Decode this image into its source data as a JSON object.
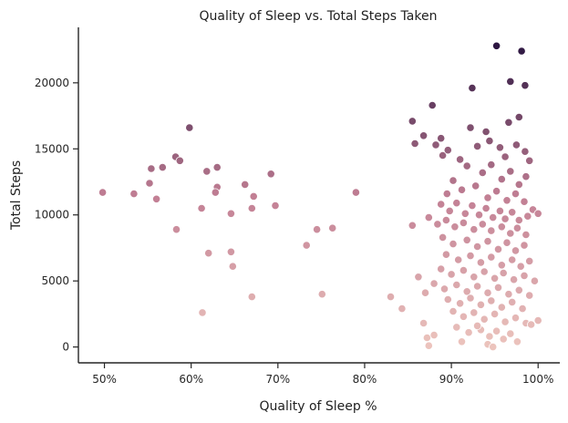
{
  "chart_data": {
    "type": "scatter",
    "title": "Quality of Sleep vs. Total Steps Taken",
    "xlabel": "Quality of Sleep %",
    "ylabel": "Total Steps",
    "xlim": [
      0.47,
      1.025
    ],
    "ylim": [
      -1200,
      24200
    ],
    "xticks": [
      0.5,
      0.6,
      0.7,
      0.8,
      0.9,
      1.0
    ],
    "xtick_labels": [
      "50%",
      "60%",
      "70%",
      "80%",
      "90%",
      "100%"
    ],
    "yticks": [
      0,
      5000,
      10000,
      15000,
      20000
    ],
    "ytick_labels": [
      "0",
      "5000",
      "10000",
      "15000",
      "20000"
    ],
    "grid": false,
    "color_encoding": "hue by Total Steps (light pink = low, dark purple = high)",
    "colors": {
      "low": "#ecc4bd",
      "mid": "#c27f94",
      "high": "#2d1641"
    },
    "points": [
      {
        "x": 0.498,
        "y": 11700
      },
      {
        "x": 0.534,
        "y": 11600
      },
      {
        "x": 0.552,
        "y": 12400
      },
      {
        "x": 0.554,
        "y": 13500
      },
      {
        "x": 0.56,
        "y": 11200
      },
      {
        "x": 0.567,
        "y": 13600
      },
      {
        "x": 0.582,
        "y": 14400
      },
      {
        "x": 0.587,
        "y": 14100
      },
      {
        "x": 0.598,
        "y": 16600
      },
      {
        "x": 0.583,
        "y": 8900
      },
      {
        "x": 0.612,
        "y": 10500
      },
      {
        "x": 0.618,
        "y": 13300
      },
      {
        "x": 0.63,
        "y": 13600
      },
      {
        "x": 0.63,
        "y": 12100
      },
      {
        "x": 0.628,
        "y": 11700
      },
      {
        "x": 0.646,
        "y": 10100
      },
      {
        "x": 0.62,
        "y": 7100
      },
      {
        "x": 0.646,
        "y": 7200
      },
      {
        "x": 0.648,
        "y": 6100
      },
      {
        "x": 0.613,
        "y": 2600
      },
      {
        "x": 0.662,
        "y": 12300
      },
      {
        "x": 0.672,
        "y": 11400
      },
      {
        "x": 0.67,
        "y": 10500
      },
      {
        "x": 0.692,
        "y": 13100
      },
      {
        "x": 0.697,
        "y": 10700
      },
      {
        "x": 0.67,
        "y": 3800
      },
      {
        "x": 0.733,
        "y": 7700
      },
      {
        "x": 0.745,
        "y": 8900
      },
      {
        "x": 0.763,
        "y": 9000
      },
      {
        "x": 0.751,
        "y": 4000
      },
      {
        "x": 0.79,
        "y": 11700
      },
      {
        "x": 0.83,
        "y": 3800
      },
      {
        "x": 0.843,
        "y": 2900
      },
      {
        "x": 0.855,
        "y": 9200
      },
      {
        "x": 0.855,
        "y": 17100
      },
      {
        "x": 0.858,
        "y": 15400
      },
      {
        "x": 0.868,
        "y": 16000
      },
      {
        "x": 0.878,
        "y": 18300
      },
      {
        "x": 0.882,
        "y": 15300
      },
      {
        "x": 0.888,
        "y": 15800
      },
      {
        "x": 0.89,
        "y": 14500
      },
      {
        "x": 0.896,
        "y": 14900
      },
      {
        "x": 0.862,
        "y": 5300
      },
      {
        "x": 0.868,
        "y": 1800
      },
      {
        "x": 0.87,
        "y": 4100
      },
      {
        "x": 0.872,
        "y": 700
      },
      {
        "x": 0.874,
        "y": 100
      },
      {
        "x": 0.88,
        "y": 900
      },
      {
        "x": 0.922,
        "y": 16600
      },
      {
        "x": 0.924,
        "y": 19600
      },
      {
        "x": 0.952,
        "y": 22800
      },
      {
        "x": 0.981,
        "y": 22400
      },
      {
        "x": 0.968,
        "y": 20100
      },
      {
        "x": 0.985,
        "y": 19800
      },
      {
        "x": 0.978,
        "y": 17400
      },
      {
        "x": 0.966,
        "y": 17000
      },
      {
        "x": 0.94,
        "y": 16300
      },
      {
        "x": 0.93,
        "y": 15200
      },
      {
        "x": 0.944,
        "y": 15600
      },
      {
        "x": 0.956,
        "y": 15100
      },
      {
        "x": 0.962,
        "y": 14400
      },
      {
        "x": 0.975,
        "y": 15300
      },
      {
        "x": 0.985,
        "y": 14800
      },
      {
        "x": 0.99,
        "y": 14100
      },
      {
        "x": 0.91,
        "y": 14200
      },
      {
        "x": 0.918,
        "y": 13700
      },
      {
        "x": 0.936,
        "y": 13200
      },
      {
        "x": 0.946,
        "y": 13800
      },
      {
        "x": 0.958,
        "y": 12700
      },
      {
        "x": 0.968,
        "y": 13300
      },
      {
        "x": 0.978,
        "y": 12300
      },
      {
        "x": 0.986,
        "y": 12900
      },
      {
        "x": 0.902,
        "y": 12600
      },
      {
        "x": 0.895,
        "y": 11600
      },
      {
        "x": 0.912,
        "y": 11900
      },
      {
        "x": 0.928,
        "y": 12200
      },
      {
        "x": 0.942,
        "y": 11300
      },
      {
        "x": 0.952,
        "y": 11800
      },
      {
        "x": 0.964,
        "y": 11100
      },
      {
        "x": 0.974,
        "y": 11600
      },
      {
        "x": 0.984,
        "y": 11000
      },
      {
        "x": 0.994,
        "y": 10400
      },
      {
        "x": 1.0,
        "y": 10100
      },
      {
        "x": 0.888,
        "y": 10800
      },
      {
        "x": 0.898,
        "y": 10300
      },
      {
        "x": 0.906,
        "y": 10900
      },
      {
        "x": 0.916,
        "y": 10100
      },
      {
        "x": 0.924,
        "y": 10700
      },
      {
        "x": 0.932,
        "y": 10000
      },
      {
        "x": 0.94,
        "y": 10500
      },
      {
        "x": 0.948,
        "y": 9800
      },
      {
        "x": 0.956,
        "y": 10300
      },
      {
        "x": 0.962,
        "y": 9700
      },
      {
        "x": 0.97,
        "y": 10200
      },
      {
        "x": 0.978,
        "y": 9600
      },
      {
        "x": 0.988,
        "y": 9900
      },
      {
        "x": 0.874,
        "y": 9800
      },
      {
        "x": 0.884,
        "y": 9300
      },
      {
        "x": 0.894,
        "y": 9600
      },
      {
        "x": 0.904,
        "y": 9100
      },
      {
        "x": 0.914,
        "y": 9400
      },
      {
        "x": 0.926,
        "y": 8900
      },
      {
        "x": 0.936,
        "y": 9300
      },
      {
        "x": 0.946,
        "y": 8800
      },
      {
        "x": 0.958,
        "y": 9100
      },
      {
        "x": 0.968,
        "y": 8600
      },
      {
        "x": 0.976,
        "y": 9000
      },
      {
        "x": 0.986,
        "y": 8500
      },
      {
        "x": 0.89,
        "y": 8300
      },
      {
        "x": 0.902,
        "y": 7800
      },
      {
        "x": 0.918,
        "y": 8100
      },
      {
        "x": 0.93,
        "y": 7600
      },
      {
        "x": 0.942,
        "y": 8000
      },
      {
        "x": 0.954,
        "y": 7400
      },
      {
        "x": 0.964,
        "y": 7900
      },
      {
        "x": 0.974,
        "y": 7300
      },
      {
        "x": 0.984,
        "y": 7700
      },
      {
        "x": 0.894,
        "y": 7000
      },
      {
        "x": 0.908,
        "y": 6600
      },
      {
        "x": 0.922,
        "y": 6900
      },
      {
        "x": 0.934,
        "y": 6400
      },
      {
        "x": 0.946,
        "y": 6800
      },
      {
        "x": 0.958,
        "y": 6200
      },
      {
        "x": 0.97,
        "y": 6600
      },
      {
        "x": 0.98,
        "y": 6100
      },
      {
        "x": 0.99,
        "y": 6500
      },
      {
        "x": 0.888,
        "y": 5900
      },
      {
        "x": 0.9,
        "y": 5500
      },
      {
        "x": 0.914,
        "y": 5800
      },
      {
        "x": 0.926,
        "y": 5300
      },
      {
        "x": 0.938,
        "y": 5700
      },
      {
        "x": 0.95,
        "y": 5200
      },
      {
        "x": 0.96,
        "y": 5600
      },
      {
        "x": 0.972,
        "y": 5100
      },
      {
        "x": 0.984,
        "y": 5400
      },
      {
        "x": 0.996,
        "y": 5000
      },
      {
        "x": 0.88,
        "y": 4800
      },
      {
        "x": 0.892,
        "y": 4400
      },
      {
        "x": 0.906,
        "y": 4700
      },
      {
        "x": 0.918,
        "y": 4200
      },
      {
        "x": 0.93,
        "y": 4600
      },
      {
        "x": 0.942,
        "y": 4100
      },
      {
        "x": 0.954,
        "y": 4500
      },
      {
        "x": 0.966,
        "y": 4000
      },
      {
        "x": 0.978,
        "y": 4300
      },
      {
        "x": 0.99,
        "y": 3900
      },
      {
        "x": 0.896,
        "y": 3600
      },
      {
        "x": 0.91,
        "y": 3300
      },
      {
        "x": 0.922,
        "y": 3700
      },
      {
        "x": 0.934,
        "y": 3200
      },
      {
        "x": 0.946,
        "y": 3500
      },
      {
        "x": 0.958,
        "y": 3000
      },
      {
        "x": 0.97,
        "y": 3400
      },
      {
        "x": 0.982,
        "y": 2900
      },
      {
        "x": 0.902,
        "y": 2700
      },
      {
        "x": 0.914,
        "y": 2300
      },
      {
        "x": 0.926,
        "y": 2600
      },
      {
        "x": 0.938,
        "y": 2100
      },
      {
        "x": 0.95,
        "y": 2500
      },
      {
        "x": 0.962,
        "y": 1900
      },
      {
        "x": 0.974,
        "y": 2200
      },
      {
        "x": 0.986,
        "y": 1800
      },
      {
        "x": 0.992,
        "y": 1700
      },
      {
        "x": 1.0,
        "y": 2000
      },
      {
        "x": 0.906,
        "y": 1500
      },
      {
        "x": 0.92,
        "y": 1100
      },
      {
        "x": 0.934,
        "y": 1300
      },
      {
        "x": 0.944,
        "y": 800
      },
      {
        "x": 0.952,
        "y": 1200
      },
      {
        "x": 0.96,
        "y": 600
      },
      {
        "x": 0.968,
        "y": 1000
      },
      {
        "x": 0.976,
        "y": 400
      },
      {
        "x": 0.942,
        "y": 200
      },
      {
        "x": 0.948,
        "y": 0
      },
      {
        "x": 0.93,
        "y": 1600
      },
      {
        "x": 0.912,
        "y": 400
      }
    ]
  }
}
